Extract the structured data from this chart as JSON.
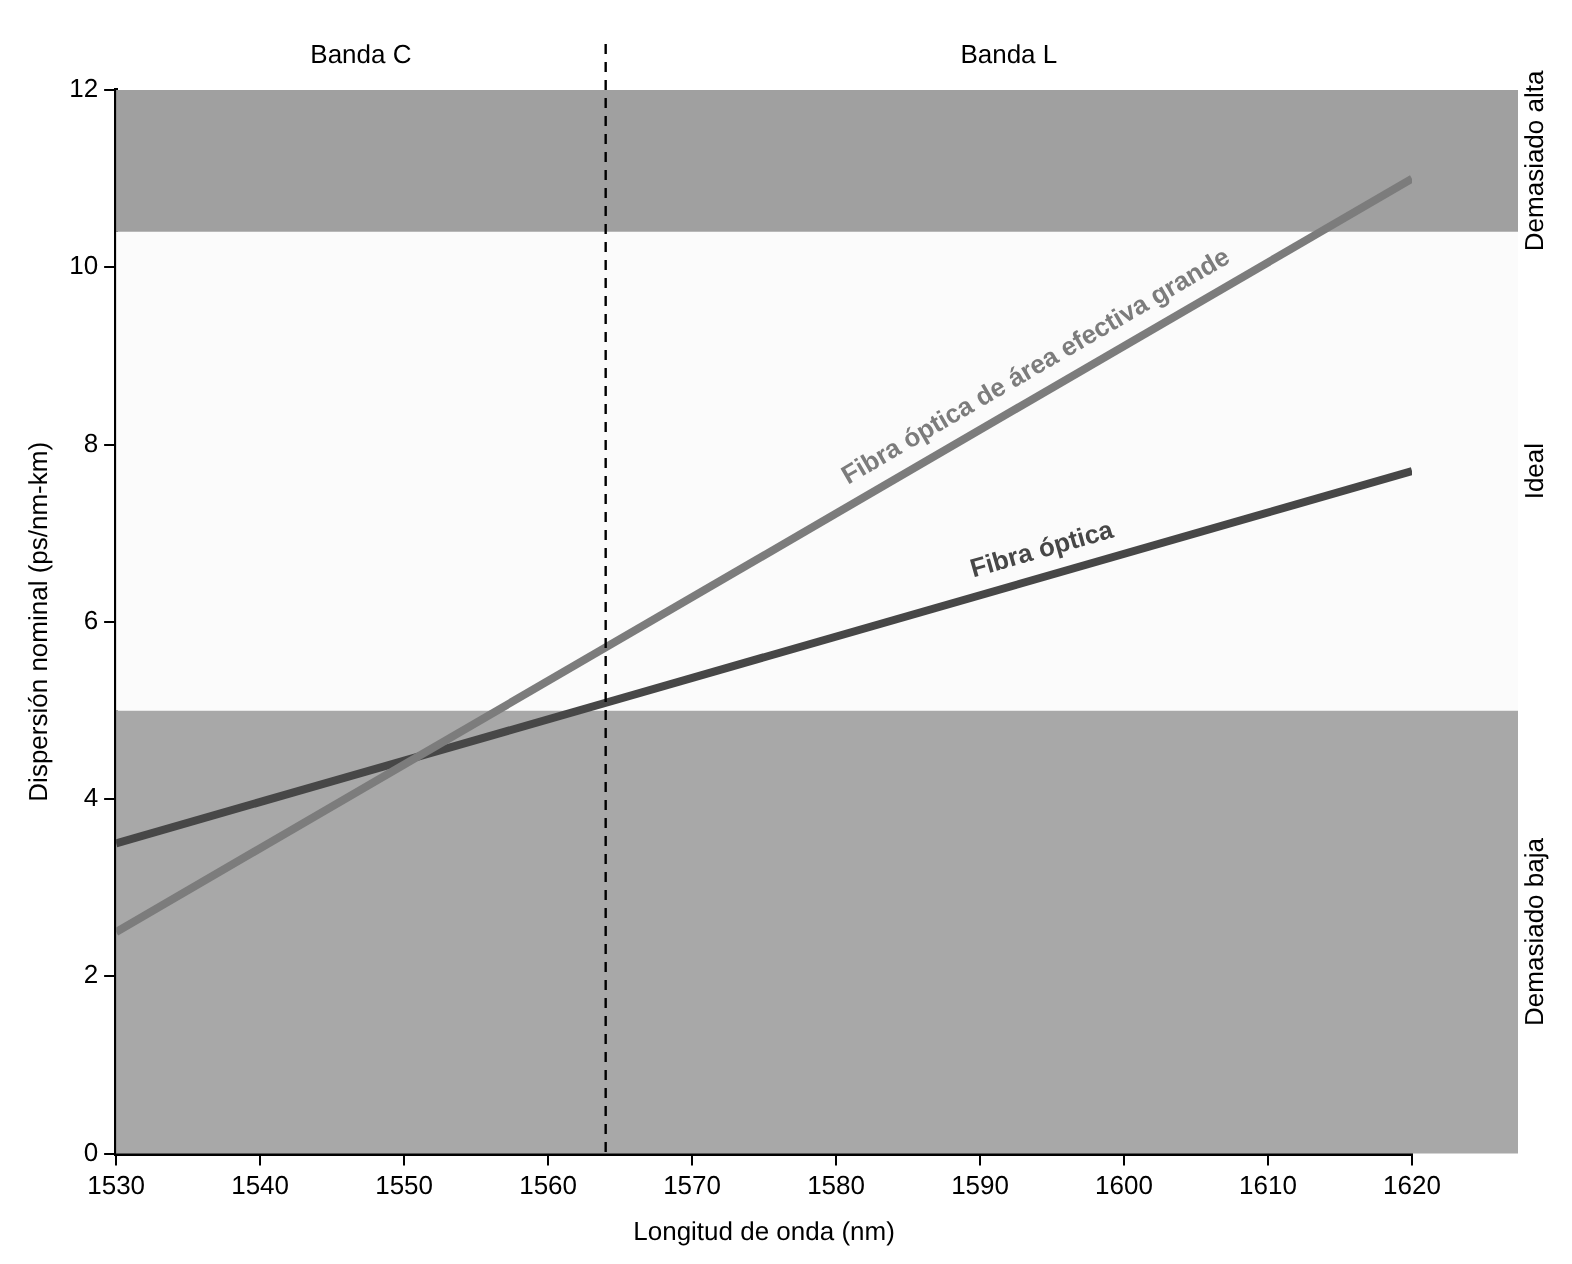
{
  "chart_data": {
    "type": "line",
    "xlabel": "Longitud de onda (nm)",
    "ylabel": "Dispersión nominal (ps/nm-km)",
    "x": [
      1530,
      1620
    ],
    "series": [
      {
        "color": "#7c7c7c",
        "values": [
          2.5,
          11.0
        ]
      },
      {
        "color": "#474747",
        "values": [
          3.5,
          7.7
        ]
      }
    ],
    "xlim": [
      1530,
      1620
    ],
    "xticks": [
      1530,
      1540,
      1550,
      1560,
      1570,
      1580,
      1590,
      1600,
      1610,
      1620
    ],
    "ylim": [
      0,
      12
    ],
    "yticks": [
      0,
      2,
      4,
      6,
      8,
      10,
      12
    ],
    "grid": false,
    "legend": false,
    "marker": "none",
    "line_style": "solid",
    "ref_lines": [
      {
        "axis": "x",
        "value": 1564,
        "line_style": "dashed",
        "color": "#000000"
      }
    ],
    "bands": [
      {
        "axis": "y",
        "from": 0,
        "to": 5,
        "label": "Demasiado baja",
        "color": "#a8a8a8"
      },
      {
        "axis": "y",
        "from": 5,
        "to": 10.4,
        "label": "Ideal",
        "color": "#fbfbfb"
      },
      {
        "axis": "y",
        "from": 10.4,
        "to": 12,
        "label": "Demasiado alta",
        "color": "#a0a0a0"
      }
    ],
    "annotations": [
      "Banda C",
      "Banda L",
      "Fibra óptica de área efectiva grande",
      "Fibra óptica"
    ]
  }
}
